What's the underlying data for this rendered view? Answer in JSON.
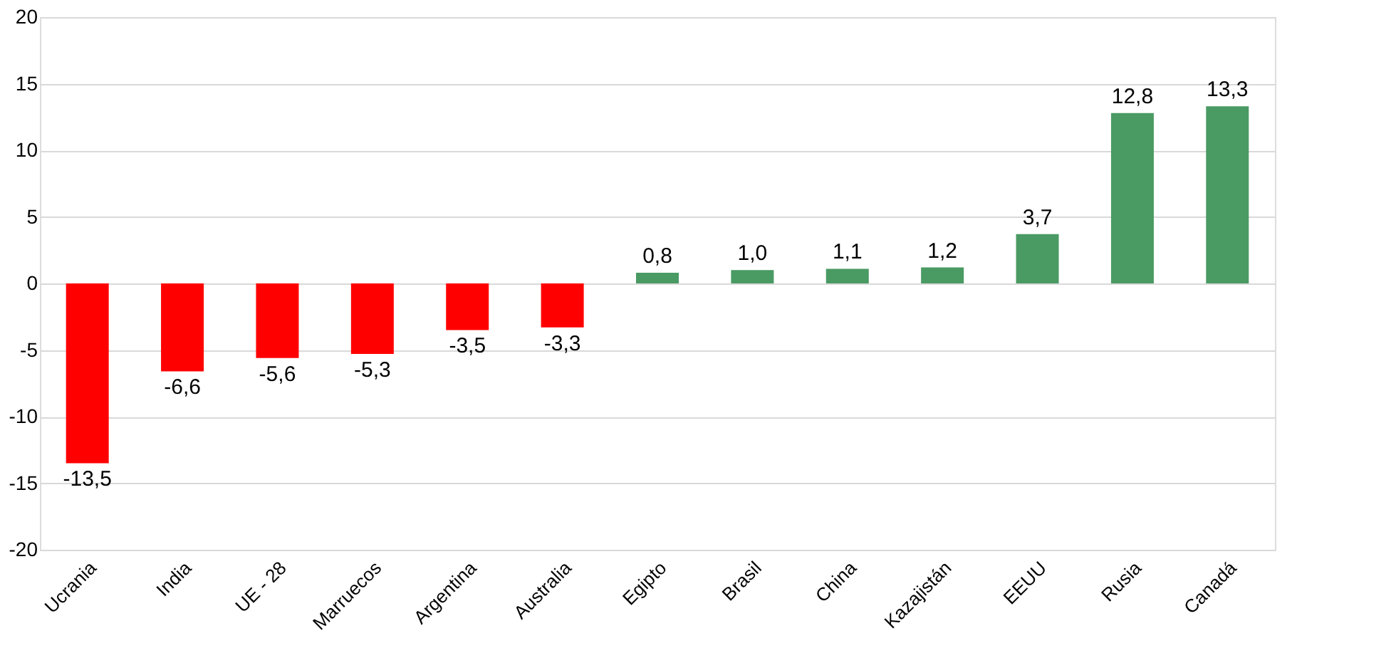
{
  "chart_data": {
    "type": "bar",
    "categories": [
      "Ucrania",
      "India",
      "UE - 28",
      "Marruecos",
      "Argentina",
      "Australia",
      "Egipto",
      "Brasil",
      "China",
      "Kazajistán",
      "EEUU",
      "Rusia",
      "Canadá"
    ],
    "values": [
      -13.5,
      -6.6,
      -5.6,
      -5.3,
      -3.5,
      -3.3,
      0.8,
      1.0,
      1.1,
      1.2,
      3.7,
      12.8,
      13.3
    ],
    "value_labels": [
      "-13,5",
      "-6,6",
      "-5,6",
      "-5,3",
      "-3,5",
      "-3,3",
      "0,8",
      "1,0",
      "1,1",
      "1,2",
      "3,7",
      "12,8",
      "13,3"
    ],
    "colors": [
      "#ff0000",
      "#ff0000",
      "#ff0000",
      "#ff0000",
      "#ff0000",
      "#ff0000",
      "#4a9a63",
      "#4a9a63",
      "#4a9a63",
      "#4a9a63",
      "#4a9a63",
      "#4a9a63",
      "#4a9a63"
    ],
    "ylim": [
      -20,
      20
    ],
    "yticks": [
      -20,
      -15,
      -10,
      -5,
      0,
      5,
      10,
      15,
      20
    ],
    "grid": "y"
  }
}
